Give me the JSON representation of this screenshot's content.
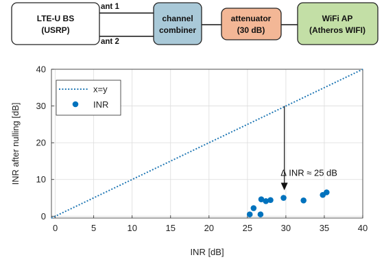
{
  "diagram": {
    "blocks": [
      {
        "id": "bs",
        "line1": "LTE-U BS",
        "line2": "(USRP)",
        "fill": "#ffffff"
      },
      {
        "id": "combiner",
        "line1": "channel",
        "line2": "combiner",
        "fill": "#a9c9d8"
      },
      {
        "id": "attenuator",
        "line1": "attenuator",
        "line2": "(30 dB)",
        "fill": "#f3b796"
      },
      {
        "id": "ap",
        "line1": "WiFi AP",
        "line2": "(Atheros WIFI)",
        "fill": "#c3dfa6"
      }
    ],
    "ports": [
      "ant 1",
      "ant 2"
    ]
  },
  "chart_data": {
    "type": "scatter",
    "title": "",
    "xlabel": "INR [dB]",
    "ylabel": "INR after nulling [dB]",
    "xlim": [
      -0.5,
      40
    ],
    "ylim": [
      -0.5,
      40
    ],
    "xticks": [
      "0",
      "5",
      "10",
      "15",
      "20",
      "25",
      "30",
      "35",
      "40"
    ],
    "yticks": [
      "0",
      "10",
      "20",
      "30",
      "40"
    ],
    "grid": true,
    "legend_position": "top-left",
    "reference_line": {
      "name": "x=y",
      "style": "dotted",
      "color": "#1f77b4"
    },
    "series": [
      {
        "name": "INR",
        "color": "#0072bd",
        "points": [
          [
            25.3,
            0.5
          ],
          [
            25.8,
            2.2
          ],
          [
            26.7,
            0.5
          ],
          [
            26.8,
            4.6
          ],
          [
            27.4,
            4.1
          ],
          [
            28.0,
            4.4
          ],
          [
            29.7,
            5.0
          ],
          [
            32.3,
            4.3
          ],
          [
            34.8,
            5.8
          ],
          [
            35.3,
            6.5
          ]
        ]
      }
    ],
    "annotation": {
      "text": "∆ INR ≈ 25 dB",
      "x": 29.8,
      "y_from": 30,
      "y_to": 6.5
    }
  }
}
